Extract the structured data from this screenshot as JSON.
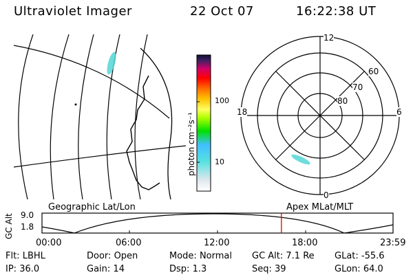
{
  "header": {
    "instrument": "Ultraviolet Imager",
    "date": "22 Oct 07",
    "time": "16:22:38 UT"
  },
  "colorbar": {
    "unit_label": "photon cm⁻²s⁻¹",
    "ticks": [
      "100",
      "10"
    ]
  },
  "polar": {
    "mlt_labels": {
      "top": "12",
      "left": "18",
      "right": "6",
      "bottom": "0"
    },
    "lat_labels": [
      "60",
      "70",
      "80"
    ]
  },
  "orbit": {
    "left_title": "Geographic Lat/Lon",
    "right_title": "Apex MLat/MLT",
    "y_axis_label": "GC Alt",
    "y_ticks": [
      "9.0",
      "1.8"
    ],
    "x_ticks": [
      "00:00",
      "06:00",
      "12:00",
      "18:00",
      "23:59"
    ],
    "current_time_fraction": 0.682
  },
  "status": {
    "row1": [
      {
        "label": "Flt:",
        "value": "LBHL"
      },
      {
        "label": "Door:",
        "value": "Open"
      },
      {
        "label": "Mode:",
        "value": "Normal"
      },
      {
        "label": "GC Alt:",
        "value": "7.1 Re"
      },
      {
        "label": "GLat:",
        "value": "-55.6"
      }
    ],
    "row2": [
      {
        "label": "IP:",
        "value": "36.0"
      },
      {
        "label": "Gain:",
        "value": "14"
      },
      {
        "label": "Dsp:",
        "value": "1.3"
      },
      {
        "label": "Seq:",
        "value": "39"
      },
      {
        "label": "GLon:",
        "value": "64.0"
      }
    ]
  },
  "colors": {
    "marker": "#e00000",
    "aurora": "#55d6d6"
  }
}
